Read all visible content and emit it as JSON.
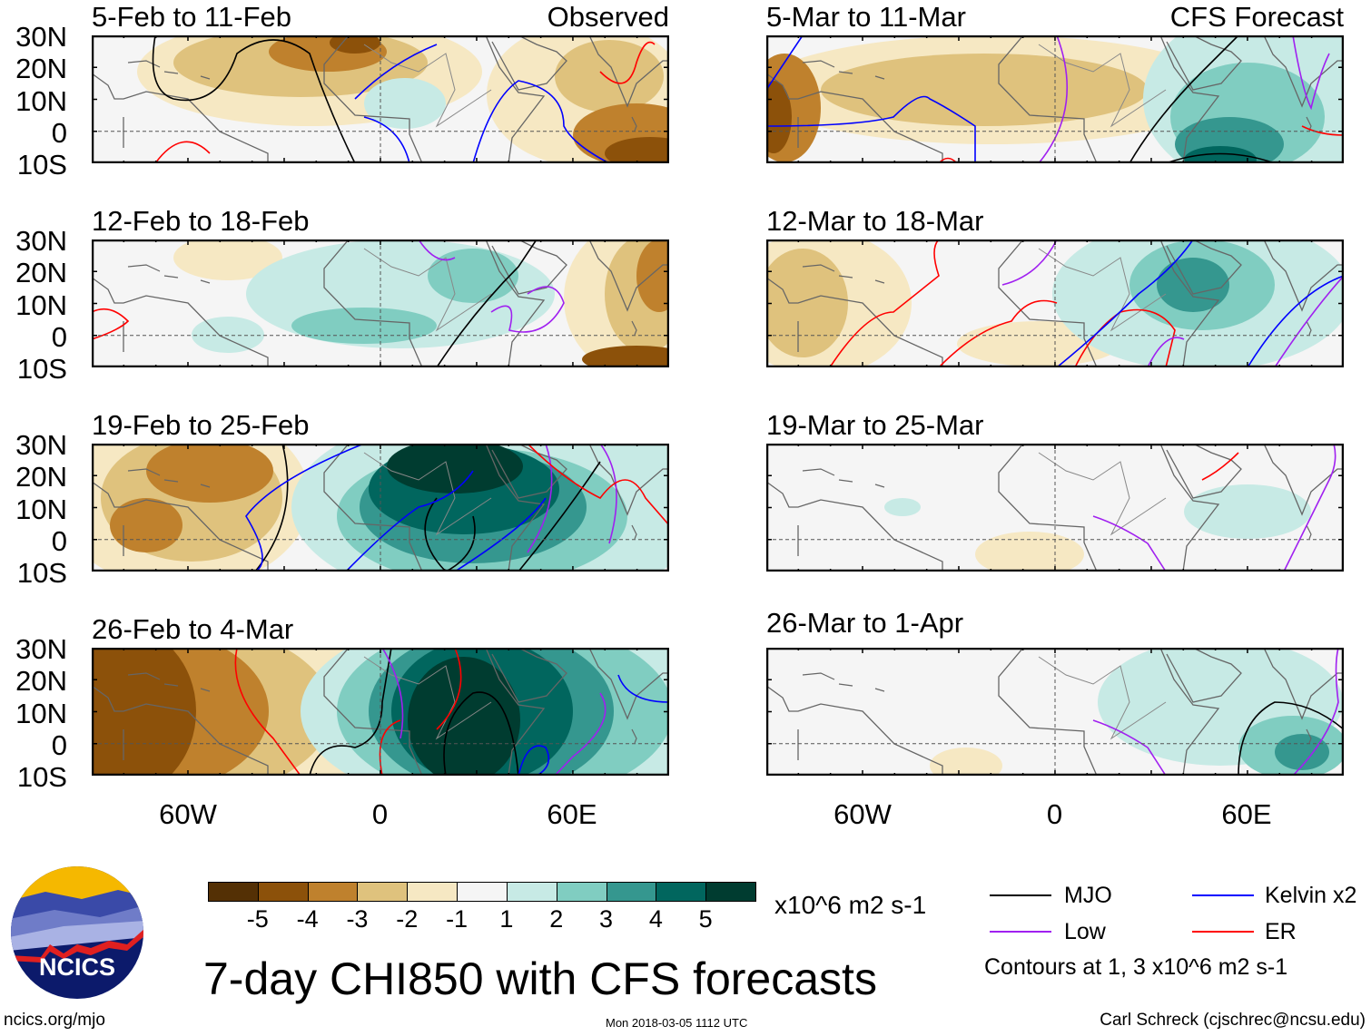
{
  "panels_left": [
    {
      "title": "5-Feb to 11-Feb",
      "tag": "Observed"
    },
    {
      "title": "12-Feb to 18-Feb"
    },
    {
      "title": "19-Feb to 25-Feb"
    },
    {
      "title": "26-Feb to 4-Mar"
    }
  ],
  "panels_right": [
    {
      "title": "5-Mar to 11-Mar",
      "tag": "CFS Forecast"
    },
    {
      "title": "12-Mar to 18-Mar"
    },
    {
      "title": "19-Mar to 25-Mar"
    },
    {
      "title": "26-Mar to 1-Apr"
    }
  ],
  "lat_labels": [
    "30N",
    "20N",
    "10N",
    "0",
    "10S"
  ],
  "lon_labels": [
    "60W",
    "0",
    "60E"
  ],
  "colorbar": {
    "colors": [
      "#543005",
      "#8c510a",
      "#bf812d",
      "#dfc27d",
      "#f6e8c3",
      "#f5f5f5",
      "#c7eae5",
      "#80cdc1",
      "#35978f",
      "#01665e",
      "#003c30"
    ],
    "labels": [
      "-5",
      "-4",
      "-3",
      "-2",
      "-1",
      "1",
      "2",
      "3",
      "4",
      "5"
    ],
    "units": "x10^6 m2 s-1"
  },
  "legend": {
    "items": [
      {
        "label": "MJO",
        "color": "#000000"
      },
      {
        "label": "Kelvin x2",
        "color": "#0000ff"
      },
      {
        "label": "Low",
        "color": "#a020f0"
      },
      {
        "label": "ER",
        "color": "#ff0000"
      }
    ],
    "note": "Contours at 1, 3 x10^6 m2 s-1"
  },
  "title": "7-day CHI850 with CFS forecasts",
  "logo": {
    "text": "NCICS"
  },
  "footer": {
    "url": "ncics.org/mjo",
    "timestamp": "Mon 2018-03-05 1112 UTC",
    "credit": "Carl Schreck (cjschrec@ncsu.edu)"
  }
}
